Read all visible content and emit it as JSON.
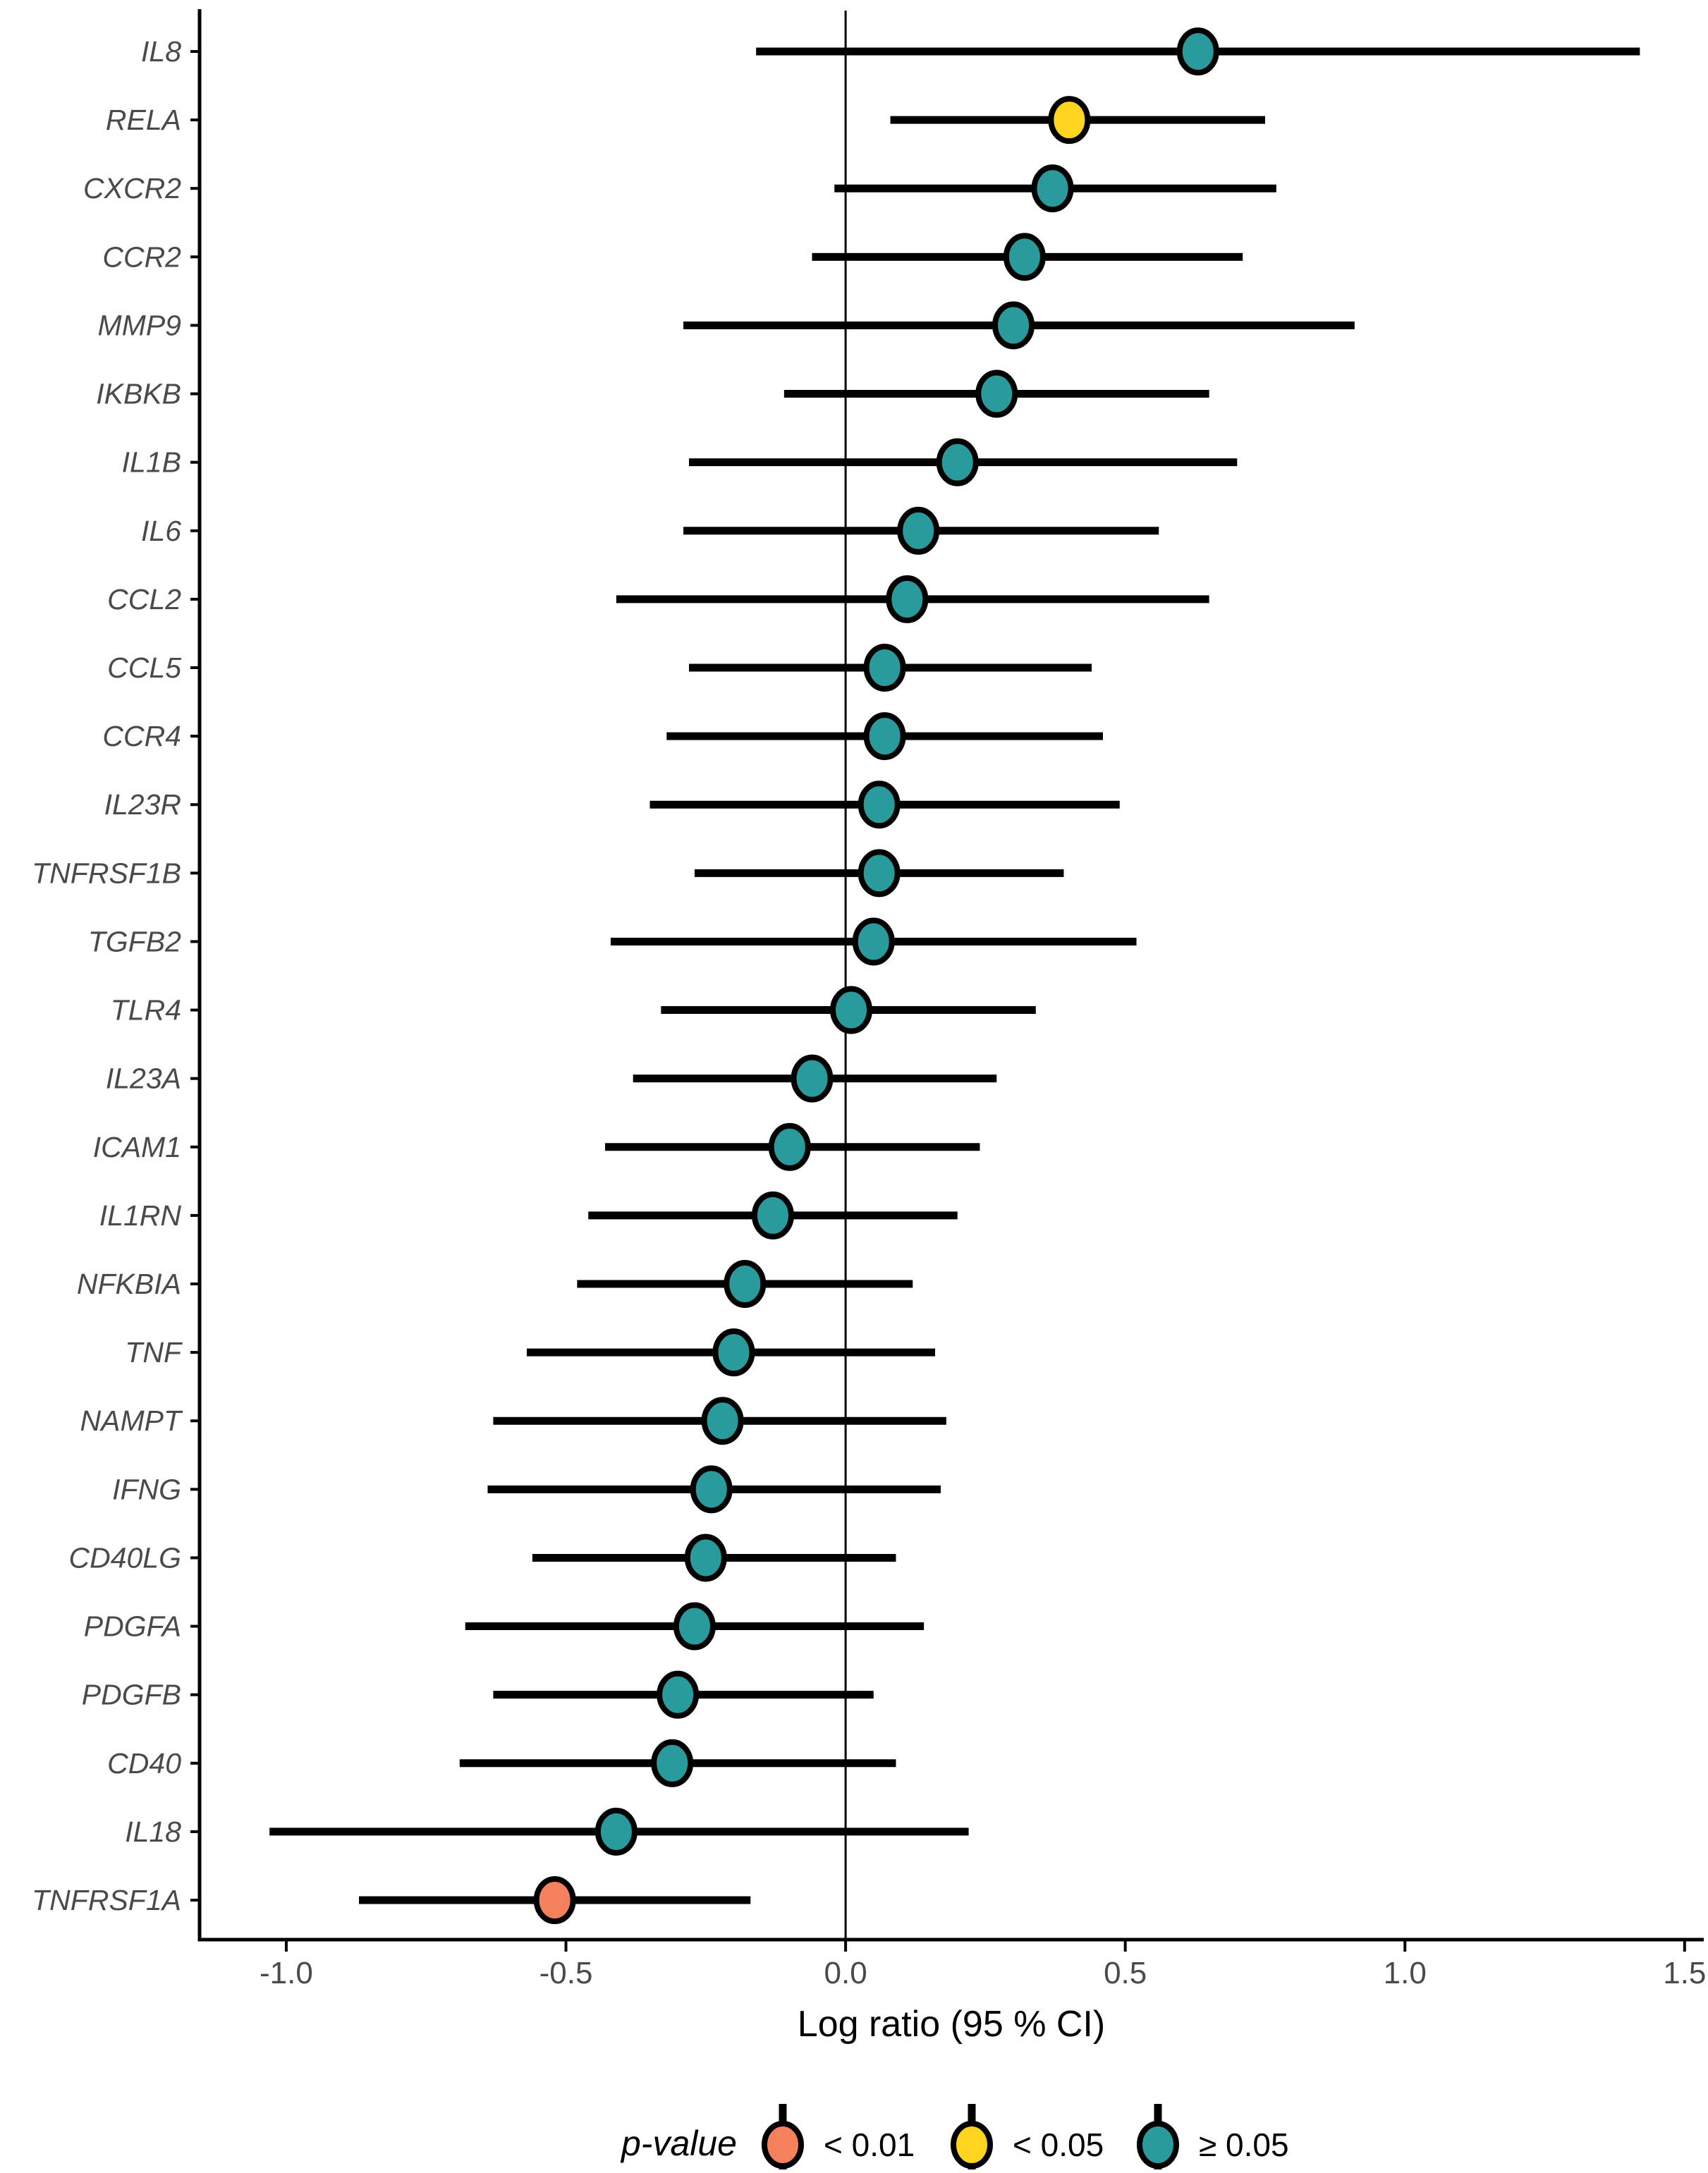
{
  "chart_data": {
    "type": "forest-pointrange",
    "title": "",
    "xlabel": "Log ratio (95 % CI)",
    "xlim": [
      -1.155,
      1.533
    ],
    "x_ticks": [
      -1.0,
      -0.5,
      0.0,
      0.5,
      1.0,
      1.5
    ],
    "x_tick_labels": [
      "-1.0",
      "-0.5",
      "0.0",
      "0.5",
      "1.0",
      "1.5"
    ],
    "zero_line_x": 0,
    "grid": "off",
    "genes": [
      {
        "label": "IL8",
        "estimate": 0.63,
        "ci_low": -0.16,
        "ci_high": 1.42,
        "p": "≥ 0.05"
      },
      {
        "label": "RELA",
        "estimate": 0.4,
        "ci_low": 0.08,
        "ci_high": 0.75,
        "p": "< 0.05"
      },
      {
        "label": "CXCR2",
        "estimate": 0.37,
        "ci_low": -0.02,
        "ci_high": 0.77,
        "p": "≥ 0.05"
      },
      {
        "label": "CCR2",
        "estimate": 0.32,
        "ci_low": -0.06,
        "ci_high": 0.71,
        "p": "≥ 0.05"
      },
      {
        "label": "MMP9",
        "estimate": 0.3,
        "ci_low": -0.29,
        "ci_high": 0.91,
        "p": "≥ 0.05"
      },
      {
        "label": "IKBKB",
        "estimate": 0.27,
        "ci_low": -0.11,
        "ci_high": 0.65,
        "p": "≥ 0.05"
      },
      {
        "label": "IL1B",
        "estimate": 0.2,
        "ci_low": -0.28,
        "ci_high": 0.7,
        "p": "≥ 0.05"
      },
      {
        "label": "IL6",
        "estimate": 0.13,
        "ci_low": -0.29,
        "ci_high": 0.56,
        "p": "≥ 0.05"
      },
      {
        "label": "CCL2",
        "estimate": 0.11,
        "ci_low": -0.41,
        "ci_high": 0.65,
        "p": "≥ 0.05"
      },
      {
        "label": "CCL5",
        "estimate": 0.07,
        "ci_low": -0.28,
        "ci_high": 0.44,
        "p": "≥ 0.05"
      },
      {
        "label": "CCR4",
        "estimate": 0.07,
        "ci_low": -0.32,
        "ci_high": 0.46,
        "p": "≥ 0.05"
      },
      {
        "label": "IL23R",
        "estimate": 0.06,
        "ci_low": -0.35,
        "ci_high": 0.49,
        "p": "≥ 0.05"
      },
      {
        "label": "TNFRSF1B",
        "estimate": 0.06,
        "ci_low": -0.27,
        "ci_high": 0.39,
        "p": "≥ 0.05"
      },
      {
        "label": "TGFB2",
        "estimate": 0.05,
        "ci_low": -0.42,
        "ci_high": 0.52,
        "p": "≥ 0.05"
      },
      {
        "label": "TLR4",
        "estimate": 0.01,
        "ci_low": -0.33,
        "ci_high": 0.34,
        "p": "≥ 0.05"
      },
      {
        "label": "IL23A",
        "estimate": -0.06,
        "ci_low": -0.38,
        "ci_high": 0.27,
        "p": "≥ 0.05"
      },
      {
        "label": "ICAM1",
        "estimate": -0.1,
        "ci_low": -0.43,
        "ci_high": 0.24,
        "p": "≥ 0.05"
      },
      {
        "label": "IL1RN",
        "estimate": -0.13,
        "ci_low": -0.46,
        "ci_high": 0.2,
        "p": "≥ 0.05"
      },
      {
        "label": "NFKBIA",
        "estimate": -0.18,
        "ci_low": -0.48,
        "ci_high": 0.12,
        "p": "≥ 0.05"
      },
      {
        "label": "TNF",
        "estimate": -0.2,
        "ci_low": -0.57,
        "ci_high": 0.16,
        "p": "≥ 0.05"
      },
      {
        "label": "NAMPT",
        "estimate": -0.22,
        "ci_low": -0.63,
        "ci_high": 0.18,
        "p": "≥ 0.05"
      },
      {
        "label": "IFNG",
        "estimate": -0.24,
        "ci_low": -0.64,
        "ci_high": 0.17,
        "p": "≥ 0.05"
      },
      {
        "label": "CD40LG",
        "estimate": -0.25,
        "ci_low": -0.56,
        "ci_high": 0.09,
        "p": "≥ 0.05"
      },
      {
        "label": "PDGFA",
        "estimate": -0.27,
        "ci_low": -0.68,
        "ci_high": 0.14,
        "p": "≥ 0.05"
      },
      {
        "label": "PDGFB",
        "estimate": -0.3,
        "ci_low": -0.63,
        "ci_high": 0.05,
        "p": "≥ 0.05"
      },
      {
        "label": "CD40",
        "estimate": -0.31,
        "ci_low": -0.69,
        "ci_high": 0.09,
        "p": "≥ 0.05"
      },
      {
        "label": "IL18",
        "estimate": -0.41,
        "ci_low": -1.03,
        "ci_high": 0.22,
        "p": "≥ 0.05"
      },
      {
        "label": "TNFRSF1A",
        "estimate": -0.52,
        "ci_low": -0.87,
        "ci_high": -0.17,
        "p": "< 0.01"
      }
    ]
  },
  "legend": {
    "title": "p-value",
    "position": "bottom-center",
    "items": [
      {
        "label": "< 0.01",
        "color": "#F5815C"
      },
      {
        "label": "< 0.05",
        "color": "#FFD41E"
      },
      {
        "label": "≥ 0.05",
        "color": "#2A9B9D"
      }
    ]
  },
  "colors": {
    "p_lt_001": "#F5815C",
    "p_lt_005": "#FFD41E",
    "p_ge_005": "#2A9B9D",
    "ci_line": "#000000",
    "axis_line": "#000000",
    "tick_label": "#4A4A4A",
    "axis_title": "#000000",
    "background": "#FFFFFF"
  }
}
